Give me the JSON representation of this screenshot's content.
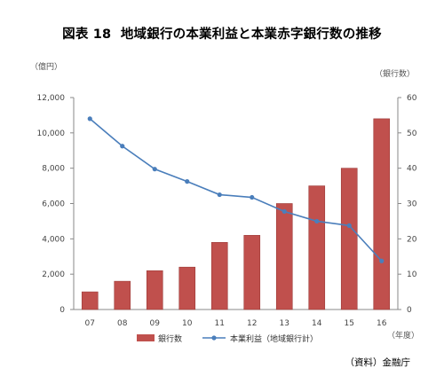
{
  "figure": {
    "number": "図表 18",
    "title": "地域銀行の本業利益と本業赤字銀行数の推移"
  },
  "source": "（資料）金融庁",
  "colors": {
    "bar": "#c0504d",
    "bar_edge": "#9c3b38",
    "line": "#4a7ebb",
    "axis": "#888888",
    "grid": "#d9d9d9"
  },
  "chart_data": {
    "type": "bar+line",
    "categories": [
      "07",
      "08",
      "09",
      "10",
      "11",
      "12",
      "13",
      "14",
      "15",
      "16"
    ],
    "x_unit": "（年度）",
    "y_left": {
      "unit": "（億円）",
      "range": [
        0,
        12000
      ],
      "ticks": [
        "0",
        "2,000",
        "4,000",
        "6,000",
        "8,000",
        "10,000",
        "12,000"
      ]
    },
    "y_right": {
      "unit": "（銀行数）",
      "range": [
        0,
        60
      ],
      "ticks": [
        "0",
        "10",
        "20",
        "30",
        "40",
        "50",
        "60"
      ]
    },
    "series": [
      {
        "name": "銀行数",
        "type": "bar",
        "axis": "right",
        "values": [
          5,
          8,
          11,
          12,
          19,
          21,
          30,
          35,
          40,
          54
        ]
      },
      {
        "name": "本業利益（地域銀行計）",
        "type": "line",
        "axis": "left",
        "values": [
          10800,
          9250,
          7950,
          7250,
          6500,
          6350,
          5550,
          5000,
          4750,
          2750
        ]
      }
    ],
    "grid": false,
    "legend": "bottom"
  }
}
